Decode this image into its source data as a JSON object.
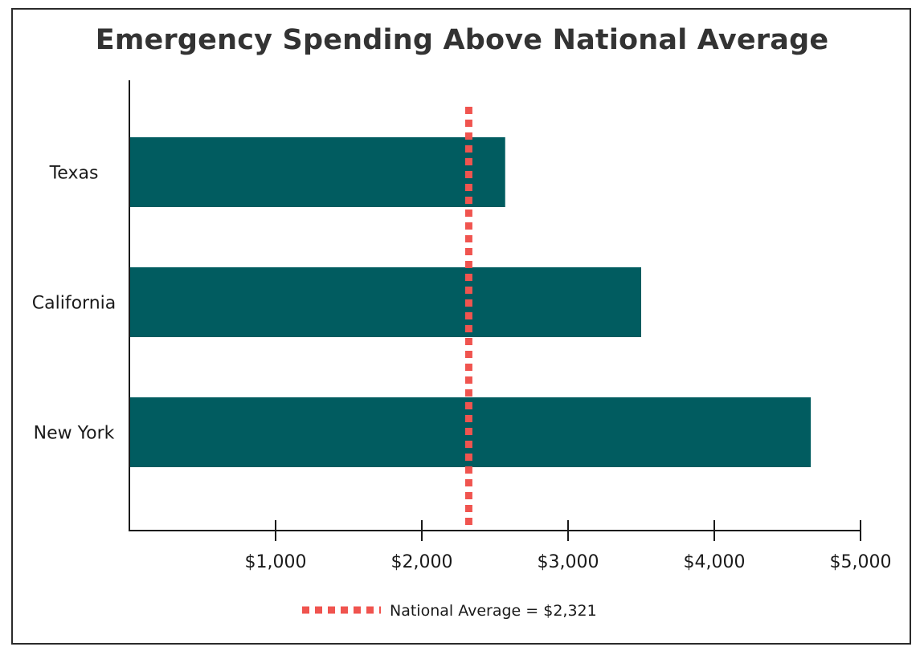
{
  "chart_data": {
    "type": "bar",
    "orientation": "horizontal",
    "title": "Emergency Spending Above National Average",
    "categories": [
      "Texas",
      "California",
      "New York"
    ],
    "values": [
      2570,
      3500,
      4660
    ],
    "xlim": [
      0,
      5000
    ],
    "xticks": [
      1000,
      2000,
      3000,
      4000,
      5000
    ],
    "xtick_labels": [
      "$1,000",
      "$2,000",
      "$3,000",
      "$4,000",
      "$5,000"
    ],
    "xlabel": "",
    "ylabel": "",
    "grid": false,
    "reference_line": {
      "value": 2321,
      "label": "National Average = $2,321",
      "style": "dotted"
    },
    "legend_position": "bottom-center",
    "colors": {
      "bar": "#015c60",
      "reference": "#f0544f",
      "axis": "#1a1a1a",
      "title": "#333333"
    }
  }
}
